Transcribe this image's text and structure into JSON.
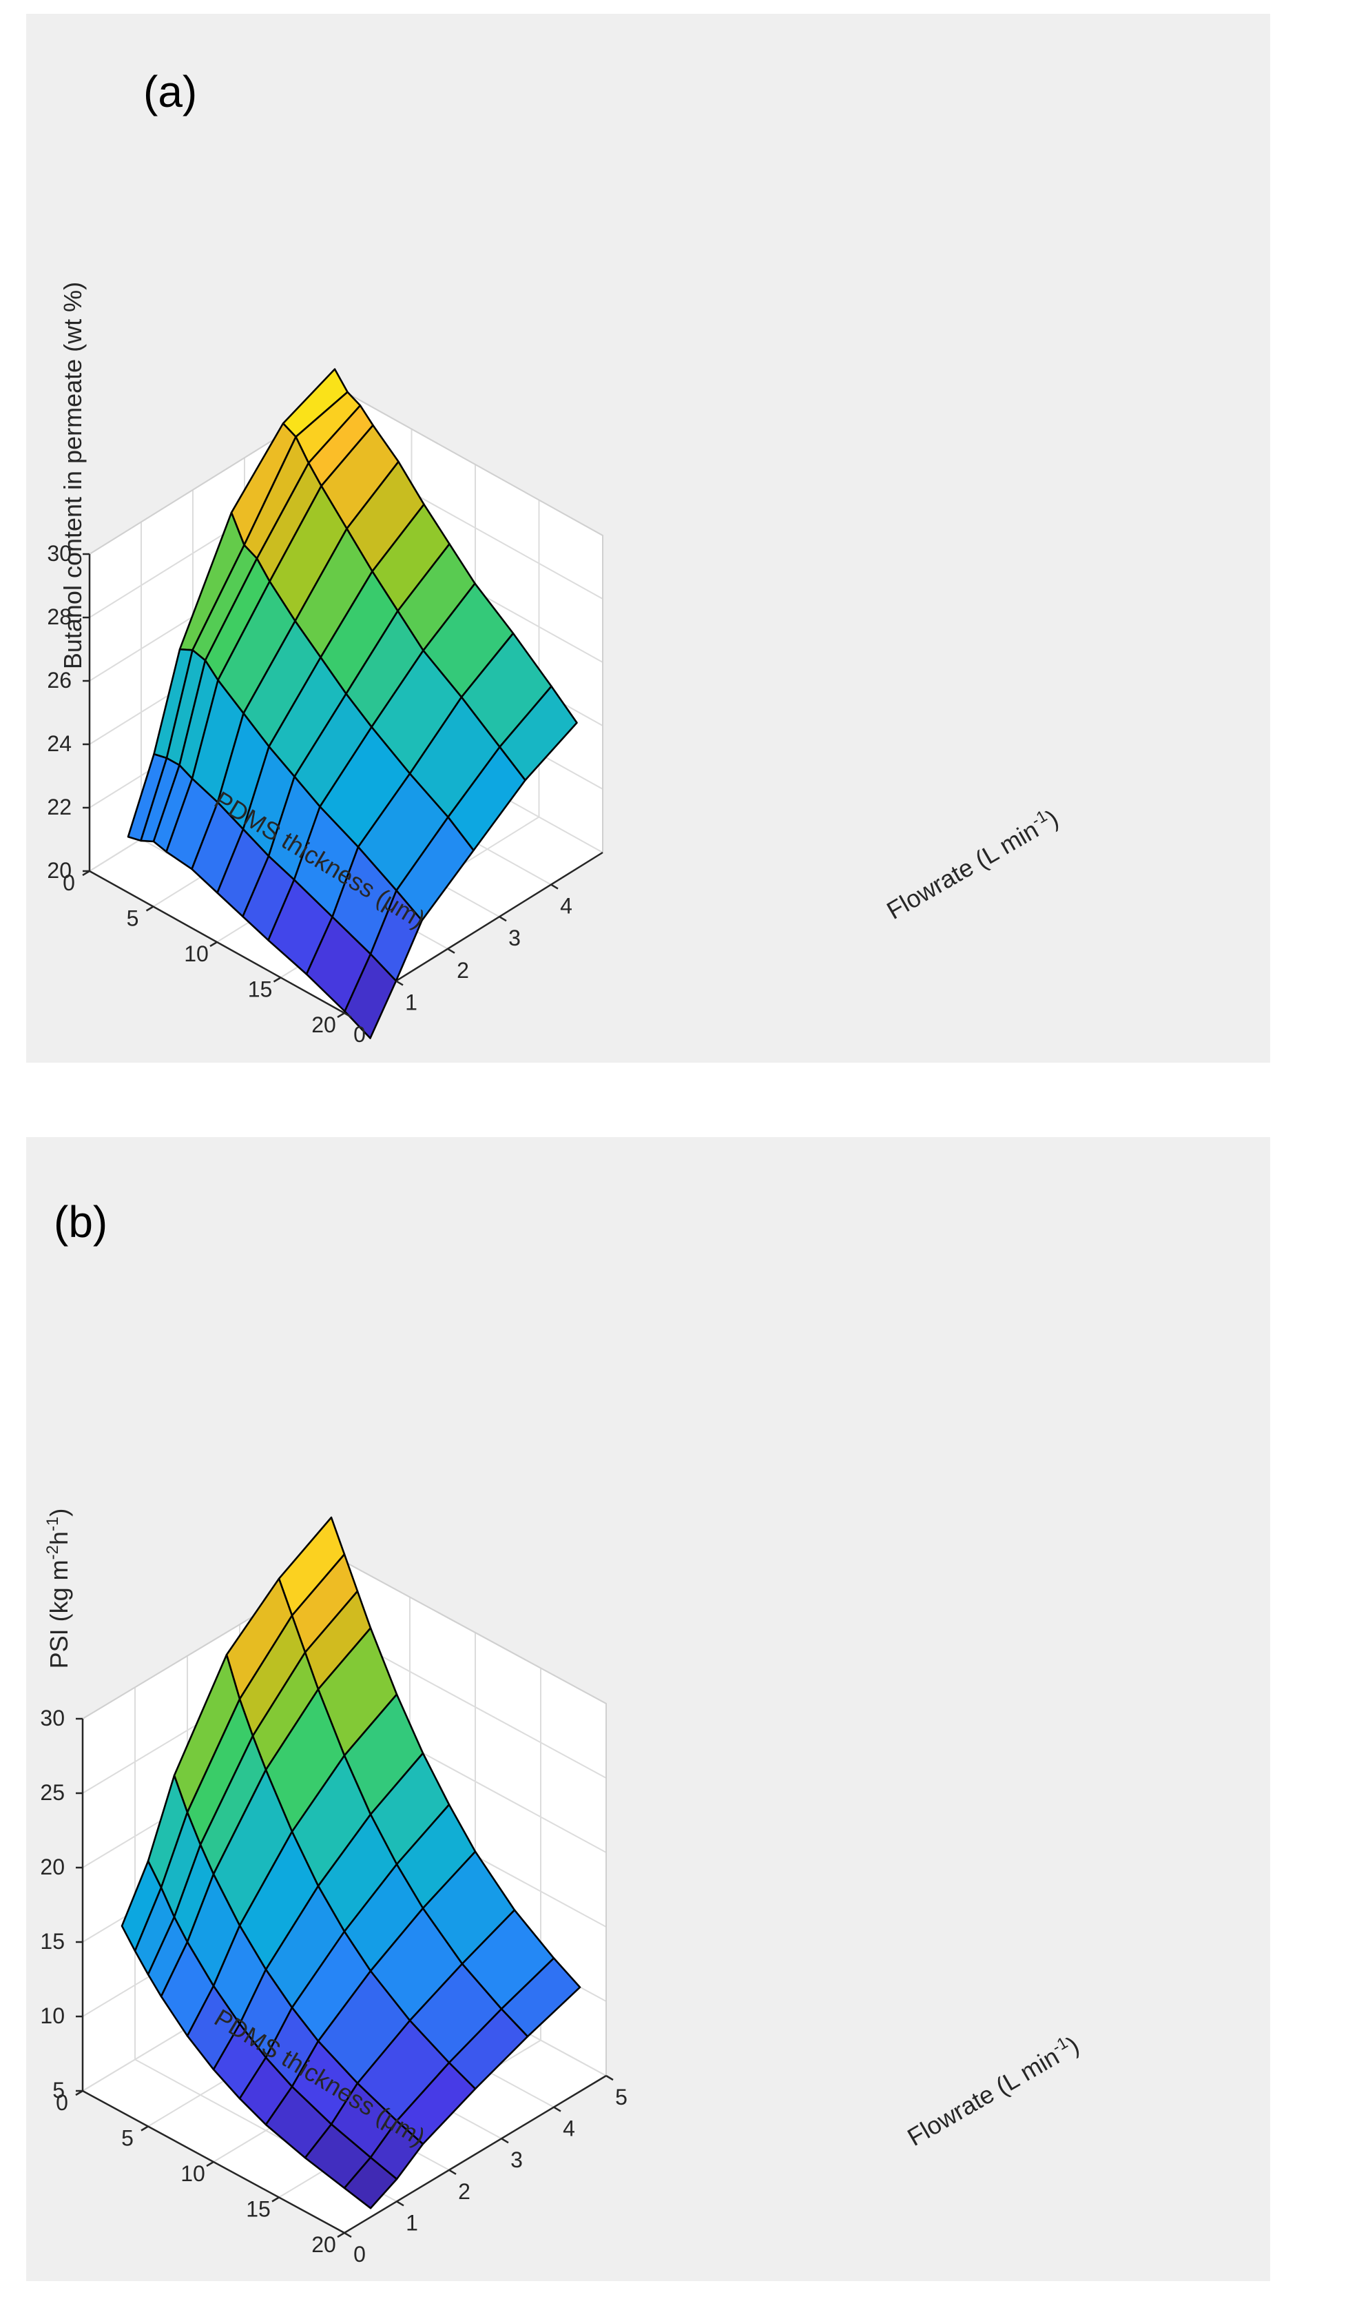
{
  "chart_data": [
    {
      "type": "surface",
      "panel_label": "(a)",
      "zlabel": "Butanol content in permeate (wt %)",
      "xlabel": "PDMS thickness (μm)",
      "ylabel_main": "Flowrate (L min",
      "ylabel_sup": "-1",
      "ylabel_tail": ")",
      "xlim": [
        0,
        20
      ],
      "ylim": [
        0,
        5
      ],
      "zlim": [
        20,
        30
      ],
      "x_ticks": [
        "0",
        "5",
        "10",
        "15",
        "20"
      ],
      "y_ticks": [
        "0",
        "1",
        "2",
        "3",
        "4"
      ],
      "z_ticks": [
        "20",
        "22",
        "24",
        "26",
        "28",
        "30"
      ],
      "thickness_um": [
        1,
        2,
        3,
        4,
        6,
        8,
        10,
        12,
        15,
        18,
        20
      ],
      "flowrate_lpm": [
        0.5,
        1,
        1.5,
        2.5,
        3.5,
        4.5
      ],
      "z_values": [
        [
          20.8,
          22.9,
          25.7,
          29.0,
          30.8,
          31.5
        ],
        [
          20.9,
          23.0,
          25.9,
          28.2,
          30.6,
          31.0
        ],
        [
          21.1,
          23.0,
          25.8,
          28.0,
          30.0,
          30.8
        ],
        [
          21.0,
          22.8,
          25.4,
          27.5,
          29.5,
          30.4
        ],
        [
          20.9,
          22.5,
          24.8,
          26.7,
          28.6,
          29.7
        ],
        [
          20.6,
          22.1,
          24.2,
          26.0,
          27.7,
          28.8
        ],
        [
          20.3,
          21.7,
          23.7,
          25.3,
          26.9,
          28.0
        ],
        [
          20.0,
          21.4,
          23.2,
          24.7,
          26.1,
          27.2
        ],
        [
          19.6,
          20.9,
          22.6,
          23.9,
          25.3,
          26.3
        ],
        [
          19.1,
          20.4,
          21.9,
          23.2,
          24.4,
          25.3
        ],
        [
          18.7,
          20.0,
          21.4,
          22.6,
          23.8,
          24.6
        ]
      ]
    },
    {
      "type": "surface",
      "panel_label": "(b)",
      "zlabel_main": "PSI (kg m",
      "zlabel_sup1": "-2",
      "zlabel_mid": "h",
      "zlabel_sup2": "-1",
      "zlabel_tail": ")",
      "xlabel": "PDMS thickness (μm)",
      "ylabel_main": "Flowrate (L min",
      "ylabel_sup": "-1",
      "ylabel_tail": ")",
      "xlim": [
        0,
        20
      ],
      "ylim": [
        0,
        5
      ],
      "zlim": [
        5,
        30
      ],
      "x_ticks": [
        "0",
        "5",
        "10",
        "15",
        "20"
      ],
      "y_ticks": [
        "0",
        "1",
        "2",
        "3",
        "4",
        "5"
      ],
      "z_ticks": [
        "5",
        "10",
        "15",
        "20",
        "25",
        "30"
      ],
      "thickness_um": [
        1,
        2,
        3,
        4,
        6,
        8,
        10,
        12,
        15,
        18,
        20
      ],
      "flowrate_lpm": [
        0.5,
        1,
        1.5,
        2.5,
        3.5,
        4.5
      ],
      "z_values": [
        [
          15.5,
          18.8,
          23.5,
          29.5,
          32.5,
          34.5
        ],
        [
          14.3,
          17.5,
          21.5,
          27.0,
          30.5,
          32.5
        ],
        [
          13.2,
          16.0,
          19.8,
          25.0,
          28.5,
          30.5
        ],
        [
          12.2,
          14.8,
          18.3,
          23.2,
          26.5,
          28.5
        ],
        [
          10.5,
          12.8,
          15.8,
          20.0,
          23.0,
          25.0
        ],
        [
          9.2,
          11.2,
          13.8,
          17.3,
          20.0,
          22.0
        ],
        [
          8.2,
          9.9,
          12.2,
          15.2,
          17.6,
          19.5
        ],
        [
          7.4,
          8.9,
          10.9,
          13.5,
          15.6,
          17.3
        ],
        [
          6.6,
          7.8,
          9.5,
          11.6,
          13.3,
          14.8
        ],
        [
          6.0,
          7.0,
          8.4,
          10.2,
          11.7,
          13.0
        ],
        [
          5.6,
          6.5,
          7.8,
          9.4,
          10.8,
          12.0
        ]
      ]
    }
  ]
}
